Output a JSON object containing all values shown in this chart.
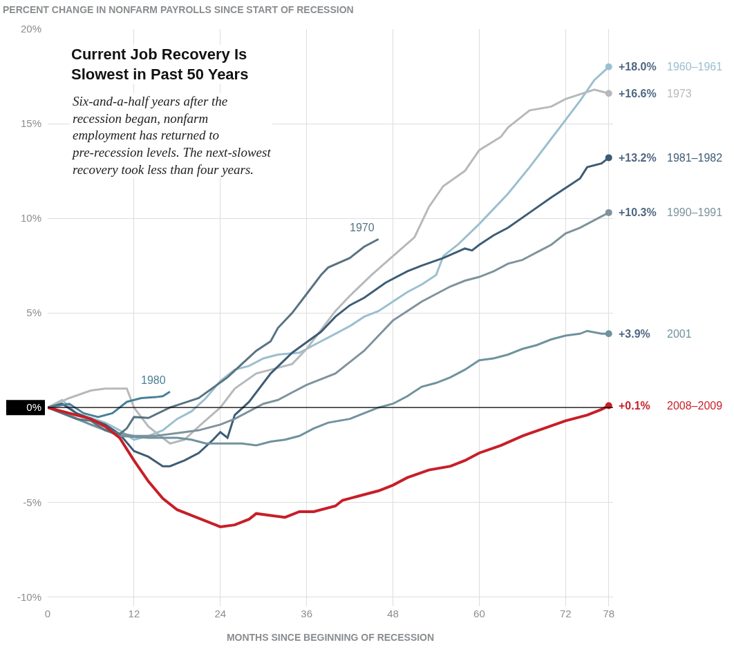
{
  "chart_data": {
    "type": "line",
    "title": "Current Job Recovery Is\nSlowest in Past 50 Years",
    "subtitle": "Six-and-a-half years after the\nrecession began, nonfarm\nemployment has returned to\npre-recession levels. The next-slowest\nrecovery took less than four years.",
    "xlabel": "MONTHS SINCE BEGINNING OF RECESSION",
    "ylabel": "PERCENT CHANGE IN NONFARM PAYROLLS SINCE START OF RECESSION",
    "xlim": [
      0,
      78.6
    ],
    "xticks": [
      0,
      12,
      24,
      36,
      48,
      60,
      72,
      78
    ],
    "ylim": [
      -10.5,
      20
    ],
    "yticks": [
      {
        "value": -10,
        "label": "-10%"
      },
      {
        "value": -5,
        "label": "-5%"
      },
      {
        "value": 0,
        "label": "0%"
      },
      {
        "value": 5,
        "label": "5%"
      },
      {
        "value": 10,
        "label": "10%"
      },
      {
        "value": 15,
        "label": "15%"
      },
      {
        "value": 20,
        "label": "20%"
      }
    ],
    "grid": true,
    "legend": false,
    "ref_lines": [
      {
        "axis": "y",
        "value": 0,
        "color": "#000000"
      }
    ],
    "series": [
      {
        "name": "1960–1961",
        "color": "#9bbfcf",
        "x": [
          0,
          2,
          4,
          8,
          10,
          12,
          14,
          16,
          18,
          20,
          22,
          24,
          26,
          28,
          30,
          32,
          35,
          38,
          40,
          42,
          44,
          46,
          48,
          50,
          52,
          54,
          55,
          57,
          60,
          64,
          67,
          70,
          72,
          74,
          76,
          78
        ],
        "values": [
          0,
          0.4,
          -0.3,
          -0.8,
          -1.2,
          -1.7,
          -1.5,
          -1.2,
          -0.6,
          -0.2,
          0.5,
          1.4,
          2.0,
          2.2,
          2.6,
          2.8,
          2.9,
          3.5,
          3.9,
          4.3,
          4.8,
          5.1,
          5.6,
          6.1,
          6.5,
          7.0,
          8.0,
          8.6,
          9.7,
          11.3,
          12.7,
          14.2,
          15.2,
          16.2,
          17.3,
          18.0
        ],
        "value_labels": [
          null,
          null,
          null,
          null,
          null,
          null,
          null,
          null,
          null,
          null,
          null,
          null,
          null,
          null,
          null,
          null,
          null,
          null,
          null,
          null,
          null,
          null,
          null,
          null,
          null,
          null,
          null,
          null,
          null,
          null,
          null,
          null,
          null,
          null,
          null,
          "+18.0%"
        ]
      },
      {
        "name": "1973",
        "color": "#b6b9bb",
        "x": [
          0,
          3,
          6,
          8,
          10,
          11,
          12,
          14,
          17,
          19,
          21,
          24,
          26,
          29,
          34,
          36,
          40,
          42,
          45,
          48,
          51,
          53,
          55,
          58,
          60,
          63,
          64,
          67,
          70,
          72,
          76,
          78
        ],
        "values": [
          0,
          0.5,
          0.9,
          1.0,
          1.0,
          1.0,
          0,
          -1.0,
          -1.9,
          -1.7,
          -1.0,
          0,
          1.0,
          1.8,
          2.3,
          3.1,
          5.1,
          5.9,
          7.0,
          8.0,
          9.0,
          10.6,
          11.7,
          12.5,
          13.6,
          14.3,
          14.8,
          15.7,
          15.9,
          16.3,
          16.8,
          16.6
        ],
        "value_labels": [
          null,
          null,
          null,
          null,
          null,
          null,
          null,
          null,
          null,
          null,
          null,
          null,
          null,
          null,
          null,
          null,
          null,
          null,
          null,
          null,
          null,
          null,
          null,
          null,
          null,
          null,
          null,
          null,
          null,
          null,
          null,
          "+16.6%"
        ]
      },
      {
        "name": "1981–1982",
        "color": "#3d5c75",
        "x": [
          0,
          2,
          4,
          6,
          8,
          10,
          12,
          14,
          16,
          17,
          19,
          21,
          23,
          24,
          25,
          26,
          28,
          31,
          34,
          38,
          40,
          42,
          44,
          47,
          50,
          52,
          55,
          58,
          59,
          60,
          62,
          64,
          67,
          70,
          72,
          74,
          75,
          77,
          78
        ],
        "values": [
          0,
          0.2,
          -0.3,
          -0.6,
          -0.9,
          -1.4,
          -2.3,
          -2.6,
          -3.1,
          -3.1,
          -2.8,
          -2.4,
          -1.7,
          -1.3,
          -1.6,
          -0.4,
          0.3,
          1.8,
          2.9,
          4.0,
          4.8,
          5.4,
          5.8,
          6.6,
          7.2,
          7.5,
          7.9,
          8.4,
          8.3,
          8.6,
          9.1,
          9.5,
          10.3,
          11.1,
          11.6,
          12.1,
          12.7,
          12.9,
          13.2
        ],
        "value_labels": [
          null,
          null,
          null,
          null,
          null,
          null,
          null,
          null,
          null,
          null,
          null,
          null,
          null,
          null,
          null,
          null,
          null,
          null,
          null,
          null,
          null,
          null,
          null,
          null,
          null,
          null,
          null,
          null,
          null,
          null,
          null,
          null,
          null,
          null,
          null,
          null,
          null,
          null,
          "+13.2%"
        ]
      },
      {
        "name": "1990–1991",
        "color": "#7e939c",
        "x": [
          0,
          3,
          6,
          9,
          12,
          15,
          18,
          21,
          24,
          26,
          28,
          30,
          32,
          34,
          36,
          38,
          40,
          42,
          44,
          46,
          48,
          50,
          52,
          54,
          56,
          58,
          60,
          62,
          64,
          66,
          68,
          70,
          72,
          74,
          76,
          78
        ],
        "values": [
          0,
          -0.4,
          -0.9,
          -1.3,
          -1.5,
          -1.5,
          -1.35,
          -1.2,
          -0.9,
          -0.6,
          -0.2,
          0.2,
          0.4,
          0.8,
          1.2,
          1.5,
          1.8,
          2.4,
          3.0,
          3.8,
          4.6,
          5.1,
          5.6,
          6.0,
          6.4,
          6.7,
          6.9,
          7.2,
          7.6,
          7.8,
          8.2,
          8.6,
          9.2,
          9.5,
          9.9,
          10.3
        ],
        "value_labels": [
          null,
          null,
          null,
          null,
          null,
          null,
          null,
          null,
          null,
          null,
          null,
          null,
          null,
          null,
          null,
          null,
          null,
          null,
          null,
          null,
          null,
          null,
          null,
          null,
          null,
          null,
          null,
          null,
          null,
          null,
          null,
          null,
          null,
          null,
          null,
          "+10.3%"
        ]
      },
      {
        "name": "2001",
        "color": "#6f929e",
        "x": [
          0,
          4,
          8,
          10,
          14,
          18,
          20,
          22,
          24,
          27,
          29,
          31,
          33,
          35,
          37,
          39,
          42,
          44,
          46,
          48,
          50,
          52,
          54,
          56,
          58,
          60,
          62,
          64,
          66,
          68,
          70,
          72,
          74,
          75,
          77,
          78
        ],
        "values": [
          0,
          -0.6,
          -1.2,
          -1.5,
          -1.6,
          -1.6,
          -1.7,
          -1.9,
          -1.9,
          -1.9,
          -2.0,
          -1.8,
          -1.7,
          -1.5,
          -1.1,
          -0.8,
          -0.6,
          -0.3,
          0.0,
          0.2,
          0.6,
          1.1,
          1.3,
          1.6,
          2.0,
          2.5,
          2.6,
          2.8,
          3.1,
          3.3,
          3.6,
          3.8,
          3.9,
          4.05,
          3.9,
          3.9
        ],
        "value_labels": [
          null,
          null,
          null,
          null,
          null,
          null,
          null,
          null,
          null,
          null,
          null,
          null,
          null,
          null,
          null,
          null,
          null,
          null,
          null,
          null,
          null,
          null,
          null,
          null,
          null,
          null,
          null,
          null,
          null,
          null,
          null,
          null,
          null,
          null,
          null,
          "+3.9%"
        ]
      },
      {
        "name": "1970",
        "color": "#587382",
        "x": [
          0,
          2,
          4,
          6,
          8,
          10,
          11,
          12,
          14,
          17,
          21,
          25,
          27,
          29,
          31,
          32,
          34,
          36,
          38,
          39,
          42,
          44,
          46
        ],
        "values": [
          0,
          -0.3,
          -0.6,
          -0.7,
          -1.2,
          -1.4,
          -1.1,
          -0.5,
          -0.55,
          0,
          0.5,
          1.6,
          2.3,
          3.0,
          3.5,
          4.2,
          5.0,
          6.0,
          7.0,
          7.4,
          7.9,
          8.5,
          8.9
        ]
      },
      {
        "name": "1980",
        "color": "#4a8096",
        "x": [
          0,
          3,
          5,
          7,
          9,
          11,
          13,
          15,
          16,
          17
        ],
        "values": [
          0,
          0.2,
          -0.3,
          -0.5,
          -0.3,
          0.3,
          0.5,
          0.55,
          0.6,
          0.84
        ]
      },
      {
        "name": "2008–2009",
        "color": "#c81e27",
        "x": [
          0,
          3,
          6,
          8,
          10,
          12,
          14,
          16,
          18,
          20,
          22,
          24,
          26,
          28,
          29,
          31,
          33,
          35,
          37,
          40,
          41,
          43,
          46,
          48,
          50,
          53,
          56,
          58,
          60,
          63,
          66,
          69,
          72,
          75,
          77,
          78
        ],
        "values": [
          0,
          -0.3,
          -0.6,
          -1.0,
          -1.6,
          -2.8,
          -3.9,
          -4.8,
          -5.4,
          -5.7,
          -6.0,
          -6.3,
          -6.2,
          -5.9,
          -5.6,
          -5.7,
          -5.8,
          -5.5,
          -5.5,
          -5.2,
          -4.9,
          -4.7,
          -4.4,
          -4.1,
          -3.7,
          -3.3,
          -3.1,
          -2.8,
          -2.4,
          -2.0,
          -1.5,
          -1.1,
          -0.7,
          -0.4,
          -0.1,
          0.1
        ],
        "value_labels": [
          null,
          null,
          null,
          null,
          null,
          null,
          null,
          null,
          null,
          null,
          null,
          null,
          null,
          null,
          null,
          null,
          null,
          null,
          null,
          null,
          null,
          null,
          null,
          null,
          null,
          null,
          null,
          null,
          null,
          null,
          null,
          null,
          null,
          null,
          null,
          "+0.1%"
        ]
      }
    ]
  }
}
